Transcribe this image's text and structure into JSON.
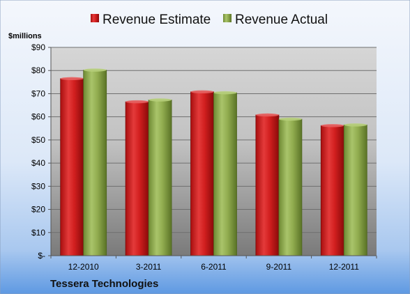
{
  "chart_data": {
    "type": "bar",
    "categories": [
      "12-2010",
      "3-2011",
      "6-2011",
      "9-2011",
      "12-2011"
    ],
    "series": [
      {
        "name": "Revenue Estimate",
        "values": [
          76.5,
          66.5,
          70.8,
          60.8,
          56.2
        ],
        "color": "#cc1f1f"
      },
      {
        "name": "Revenue Actual",
        "values": [
          80.2,
          67.3,
          70.4,
          59.0,
          56.5
        ],
        "color": "#8aa845"
      }
    ],
    "unit_label": "$millions",
    "ylim": [
      0,
      90
    ],
    "y_ticks": [
      0,
      10,
      20,
      30,
      40,
      50,
      60,
      70,
      80,
      90
    ],
    "y_tick_labels": [
      "$-",
      "$10",
      "$20",
      "$30",
      "$40",
      "$50",
      "$60",
      "$70",
      "$80",
      "$90"
    ],
    "legend_position": "top",
    "grid": true,
    "company": "Tessera Technologies"
  }
}
